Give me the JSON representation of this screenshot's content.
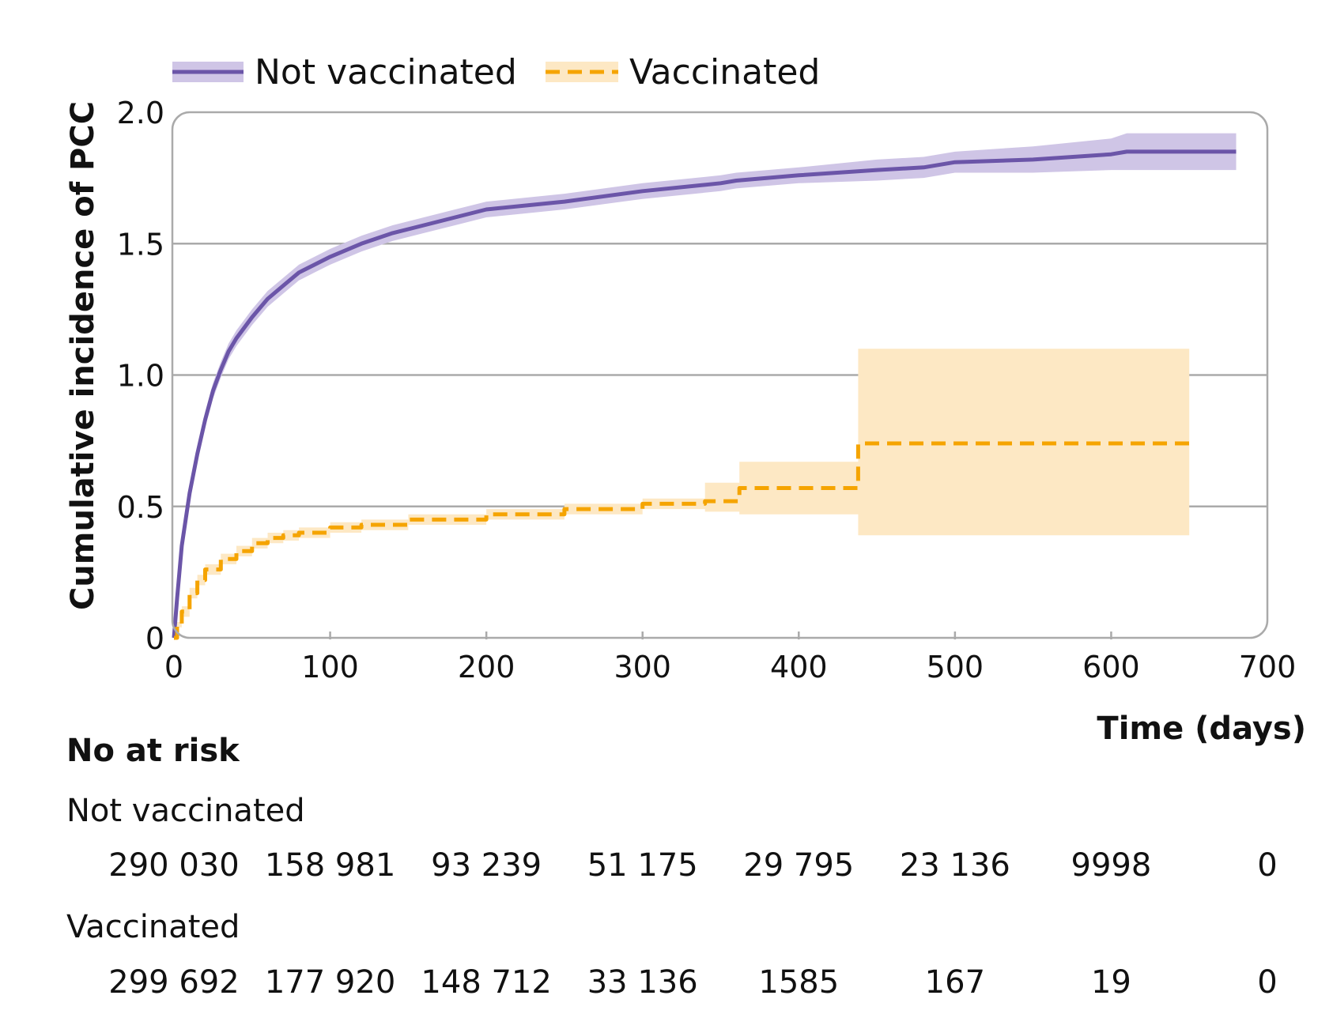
{
  "chart_data": {
    "type": "line",
    "title": "",
    "xlabel": "Time (days)",
    "ylabel": "Cumulative incidence of PCC",
    "xlim": [
      0,
      700
    ],
    "ylim": [
      0,
      2.0
    ],
    "x_ticks": [
      0,
      100,
      200,
      300,
      400,
      500,
      600,
      700
    ],
    "x_tick_labels": [
      "0",
      "100",
      "200",
      "300",
      "400",
      "500",
      "600",
      "700"
    ],
    "y_ticks": [
      0,
      0.5,
      1.0,
      1.5,
      2.0
    ],
    "y_tick_labels": [
      "0",
      "0.5",
      "1.0",
      "1.5",
      "2.0"
    ],
    "grid": "horizontal",
    "legend_position": "top",
    "series": [
      {
        "name": "Not vaccinated",
        "style": "solid",
        "color": "#6b55a8",
        "band_color": "#cfc5e6",
        "x": [
          0,
          2,
          5,
          10,
          15,
          20,
          25,
          30,
          35,
          40,
          50,
          60,
          70,
          80,
          90,
          100,
          120,
          140,
          160,
          180,
          200,
          250,
          300,
          350,
          360,
          400,
          450,
          480,
          500,
          550,
          600,
          610,
          680
        ],
        "y": [
          0,
          0.15,
          0.35,
          0.55,
          0.7,
          0.83,
          0.94,
          1.02,
          1.09,
          1.14,
          1.22,
          1.29,
          1.34,
          1.39,
          1.42,
          1.45,
          1.5,
          1.54,
          1.57,
          1.6,
          1.63,
          1.66,
          1.7,
          1.73,
          1.74,
          1.76,
          1.78,
          1.79,
          1.81,
          1.82,
          1.84,
          1.85,
          1.85
        ],
        "lower": [
          0,
          0.12,
          0.32,
          0.52,
          0.67,
          0.8,
          0.91,
          0.99,
          1.06,
          1.11,
          1.19,
          1.26,
          1.31,
          1.36,
          1.39,
          1.42,
          1.47,
          1.51,
          1.54,
          1.57,
          1.6,
          1.63,
          1.67,
          1.7,
          1.71,
          1.73,
          1.74,
          1.75,
          1.77,
          1.77,
          1.78,
          1.78,
          1.78
        ],
        "upper": [
          0,
          0.18,
          0.38,
          0.58,
          0.73,
          0.86,
          0.97,
          1.05,
          1.12,
          1.17,
          1.25,
          1.32,
          1.37,
          1.42,
          1.45,
          1.48,
          1.53,
          1.57,
          1.6,
          1.63,
          1.66,
          1.69,
          1.73,
          1.76,
          1.77,
          1.79,
          1.82,
          1.83,
          1.85,
          1.87,
          1.9,
          1.92,
          1.92
        ]
      },
      {
        "name": "Vaccinated",
        "style": "dashed",
        "color": "#f5a400",
        "band_color": "#fde8c4",
        "x": [
          0,
          2,
          5,
          10,
          15,
          20,
          30,
          40,
          50,
          60,
          70,
          80,
          100,
          120,
          150,
          200,
          250,
          300,
          340,
          362,
          438,
          650
        ],
        "y": [
          0,
          0.05,
          0.1,
          0.17,
          0.22,
          0.26,
          0.3,
          0.33,
          0.36,
          0.38,
          0.39,
          0.4,
          0.42,
          0.43,
          0.45,
          0.47,
          0.49,
          0.51,
          0.52,
          0.57,
          0.74,
          0.74
        ],
        "lower": [
          0,
          0.04,
          0.08,
          0.15,
          0.2,
          0.24,
          0.28,
          0.31,
          0.34,
          0.36,
          0.37,
          0.38,
          0.4,
          0.41,
          0.43,
          0.45,
          0.47,
          0.49,
          0.48,
          0.47,
          0.39,
          0.39
        ],
        "upper": [
          0,
          0.06,
          0.12,
          0.19,
          0.24,
          0.28,
          0.32,
          0.35,
          0.38,
          0.4,
          0.41,
          0.42,
          0.44,
          0.45,
          0.47,
          0.49,
          0.51,
          0.53,
          0.59,
          0.67,
          1.1,
          1.1
        ]
      }
    ]
  },
  "risk_table": {
    "title": "No at risk",
    "groups": [
      {
        "name": "Not vaccinated",
        "values": [
          "290 030",
          "158 981",
          "93 239",
          "51 175",
          "29 795",
          "23 136",
          "9998",
          "0"
        ]
      },
      {
        "name": "Vaccinated",
        "values": [
          "299 692",
          "177 920",
          "148 712",
          "33 136",
          "1585",
          "167",
          "19",
          "0"
        ]
      }
    ]
  }
}
